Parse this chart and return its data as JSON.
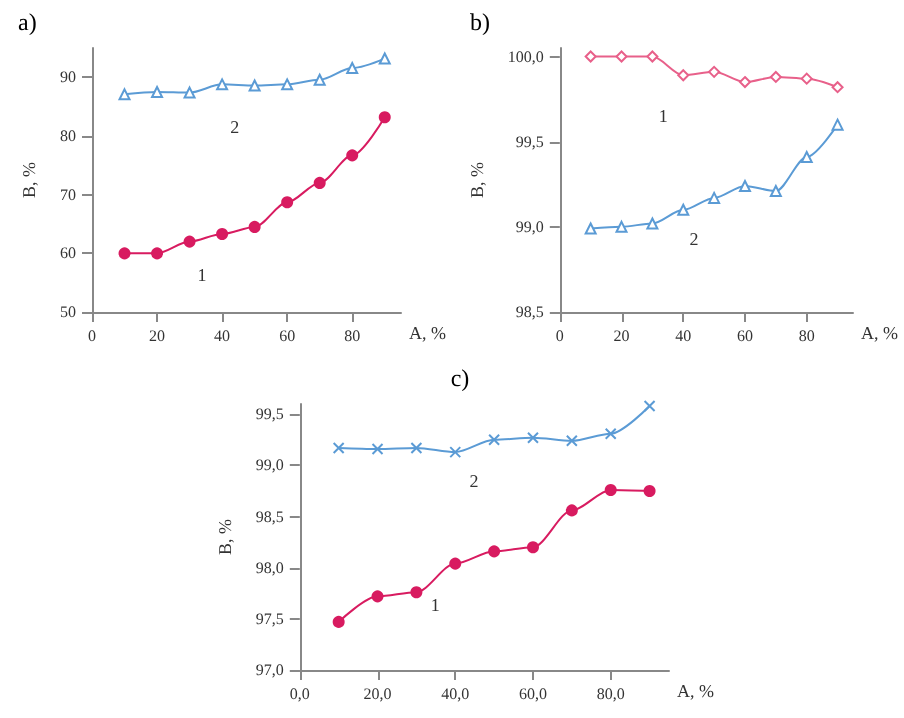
{
  "chart_data": [
    {
      "type": "line",
      "title": "a)",
      "xlabel": "A, %",
      "ylabel": "B, %",
      "x": [
        10,
        20,
        30,
        40,
        50,
        60,
        70,
        80,
        90
      ],
      "xlim": [
        0,
        95
      ],
      "xticks": [
        0,
        20,
        40,
        60,
        80
      ],
      "ylim": [
        50,
        95
      ],
      "yticks": [
        50,
        60,
        70,
        80,
        90
      ],
      "grid": false,
      "legend": false,
      "series": [
        {
          "name": "1",
          "color": "#d81b60",
          "marker": "circle",
          "values": [
            60,
            60,
            62,
            63.3,
            64.5,
            68.7,
            72,
            76.7,
            83.2
          ]
        },
        {
          "name": "2",
          "color": "#5b9bd5",
          "marker": "triangle",
          "values": [
            87.1,
            87.5,
            87.4,
            88.8,
            88.6,
            88.8,
            89.6,
            91.6,
            93.2
          ]
        }
      ]
    },
    {
      "type": "line",
      "title": "b)",
      "xlabel": "A, %",
      "ylabel": "B, %",
      "x": [
        10,
        20,
        30,
        40,
        50,
        60,
        70,
        80,
        90
      ],
      "xlim": [
        0,
        95
      ],
      "xticks": [
        0,
        20,
        40,
        60,
        80
      ],
      "ylim": [
        98.5,
        100.05
      ],
      "yticks": [
        {
          "value": 98.5,
          "label": "98,5"
        },
        {
          "value": 99,
          "label": "99,0"
        },
        {
          "value": 99.5,
          "label": "99,5"
        },
        {
          "value": 100,
          "label": "100,0"
        }
      ],
      "grid": false,
      "legend": false,
      "series": [
        {
          "name": "1",
          "color": "#e8608a",
          "marker": "diamond",
          "values": [
            100.0,
            100.0,
            100.0,
            99.89,
            99.91,
            99.85,
            99.88,
            99.87,
            99.82
          ]
        },
        {
          "name": "2",
          "color": "#5b9bd5",
          "marker": "triangle",
          "values": [
            98.99,
            99.0,
            99.02,
            99.1,
            99.17,
            99.24,
            99.21,
            99.41,
            99.6
          ]
        }
      ]
    },
    {
      "type": "line",
      "title": "c)",
      "xlabel": "A, %",
      "ylabel": "B, %",
      "x": [
        10,
        20,
        30,
        40,
        50,
        60,
        70,
        80,
        90
      ],
      "xlim": [
        0,
        95
      ],
      "xticks": [
        {
          "value": 0,
          "label": "0,0"
        },
        {
          "value": 20,
          "label": "20,0"
        },
        {
          "value": 40,
          "label": "40,0"
        },
        {
          "value": 60,
          "label": "60,0"
        },
        {
          "value": 80,
          "label": "80,0"
        }
      ],
      "ylim": [
        97,
        99.6
      ],
      "yticks": [
        {
          "value": 97,
          "label": "97,0"
        },
        {
          "value": 97.5,
          "label": "97,5"
        },
        {
          "value": 98,
          "label": "98,0"
        },
        {
          "value": 98.5,
          "label": "98,5"
        },
        {
          "value": 99,
          "label": "99,0"
        },
        {
          "value": 99.5,
          "label": "99,5"
        }
      ],
      "grid": false,
      "legend": false,
      "series": [
        {
          "name": "1",
          "color": "#d81b60",
          "marker": "circle",
          "values": [
            97.47,
            97.72,
            97.76,
            98.04,
            98.16,
            98.2,
            98.56,
            98.76,
            98.75
          ]
        },
        {
          "name": "2",
          "color": "#5b9bd5",
          "marker": "cross",
          "values": [
            99.17,
            99.16,
            99.17,
            99.13,
            99.25,
            99.27,
            99.24,
            99.31,
            99.58
          ]
        }
      ]
    }
  ]
}
